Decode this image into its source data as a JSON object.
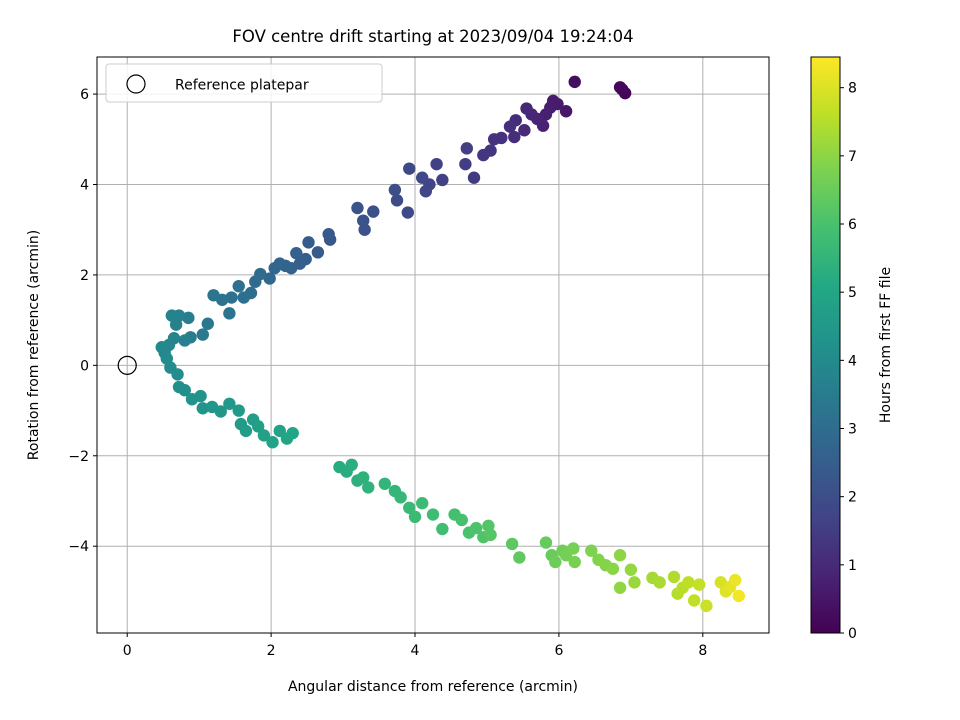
{
  "chart_data": {
    "type": "scatter",
    "title": "FOV centre drift starting at 2023/09/04 19:24:04",
    "xlabel": "Angular distance from reference (arcmin)",
    "ylabel": "Rotation from reference (arcmin)",
    "xlim": [
      -0.42,
      8.92
    ],
    "ylim": [
      -5.92,
      6.82
    ],
    "xticks": [
      0,
      2,
      4,
      6,
      8
    ],
    "yticks": [
      -4,
      -2,
      0,
      2,
      4,
      6
    ],
    "grid": true,
    "legend": {
      "placement": "upper-left",
      "entries": [
        "Reference platepar"
      ]
    },
    "reference_point": {
      "x": 0,
      "y": 0
    },
    "colorbar": {
      "label": "Hours from first FF file",
      "colormap": "viridis",
      "range": [
        0,
        8.45
      ],
      "ticks": [
        0,
        1,
        2,
        3,
        4,
        5,
        6,
        7,
        8
      ]
    },
    "point_color_encoding": "viridis by hours",
    "series": [
      {
        "points": [
          {
            "x": 6.92,
            "y": 6.02,
            "h": 0.1
          },
          {
            "x": 6.88,
            "y": 6.1,
            "h": 0.15
          },
          {
            "x": 6.85,
            "y": 6.15,
            "h": 0.2
          },
          {
            "x": 6.22,
            "y": 6.27,
            "h": 0.3
          },
          {
            "x": 6.1,
            "y": 5.62,
            "h": 0.55
          },
          {
            "x": 5.98,
            "y": 5.78,
            "h": 0.6
          },
          {
            "x": 5.92,
            "y": 5.85,
            "h": 0.65
          },
          {
            "x": 5.88,
            "y": 5.7,
            "h": 0.7
          },
          {
            "x": 5.82,
            "y": 5.55,
            "h": 0.75
          },
          {
            "x": 5.78,
            "y": 5.3,
            "h": 0.8
          },
          {
            "x": 5.7,
            "y": 5.45,
            "h": 0.85
          },
          {
            "x": 5.62,
            "y": 5.55,
            "h": 0.9
          },
          {
            "x": 5.55,
            "y": 5.68,
            "h": 0.95
          },
          {
            "x": 5.52,
            "y": 5.2,
            "h": 1.0
          },
          {
            "x": 5.4,
            "y": 5.42,
            "h": 1.05
          },
          {
            "x": 5.38,
            "y": 5.05,
            "h": 1.1
          },
          {
            "x": 5.32,
            "y": 5.28,
            "h": 1.15
          },
          {
            "x": 5.2,
            "y": 5.03,
            "h": 1.2
          },
          {
            "x": 5.1,
            "y": 5.0,
            "h": 1.25
          },
          {
            "x": 5.05,
            "y": 4.75,
            "h": 1.3
          },
          {
            "x": 4.95,
            "y": 4.65,
            "h": 1.35
          },
          {
            "x": 4.82,
            "y": 4.15,
            "h": 1.45
          },
          {
            "x": 4.7,
            "y": 4.45,
            "h": 1.5
          },
          {
            "x": 4.72,
            "y": 4.8,
            "h": 1.55
          },
          {
            "x": 4.38,
            "y": 4.1,
            "h": 1.6
          },
          {
            "x": 4.3,
            "y": 4.45,
            "h": 1.65
          },
          {
            "x": 4.2,
            "y": 4.0,
            "h": 1.7
          },
          {
            "x": 4.15,
            "y": 3.85,
            "h": 1.75
          },
          {
            "x": 4.1,
            "y": 4.15,
            "h": 1.8
          },
          {
            "x": 3.92,
            "y": 4.35,
            "h": 1.85
          },
          {
            "x": 3.9,
            "y": 3.38,
            "h": 1.9
          },
          {
            "x": 3.75,
            "y": 3.65,
            "h": 1.95
          },
          {
            "x": 3.72,
            "y": 3.88,
            "h": 2.0
          },
          {
            "x": 3.42,
            "y": 3.4,
            "h": 2.05
          },
          {
            "x": 3.3,
            "y": 3.0,
            "h": 2.1
          },
          {
            "x": 3.28,
            "y": 3.2,
            "h": 2.15
          },
          {
            "x": 3.2,
            "y": 3.48,
            "h": 2.2
          },
          {
            "x": 2.82,
            "y": 2.78,
            "h": 2.3
          },
          {
            "x": 2.8,
            "y": 2.9,
            "h": 2.35
          },
          {
            "x": 2.65,
            "y": 2.5,
            "h": 2.4
          },
          {
            "x": 2.52,
            "y": 2.72,
            "h": 2.45
          },
          {
            "x": 2.48,
            "y": 2.35,
            "h": 2.5
          },
          {
            "x": 2.4,
            "y": 2.25,
            "h": 2.55
          },
          {
            "x": 2.35,
            "y": 2.48,
            "h": 2.6
          },
          {
            "x": 2.28,
            "y": 2.15,
            "h": 2.65
          },
          {
            "x": 2.2,
            "y": 2.2,
            "h": 2.7
          },
          {
            "x": 2.12,
            "y": 2.25,
            "h": 2.75
          },
          {
            "x": 2.05,
            "y": 2.15,
            "h": 2.8
          },
          {
            "x": 1.98,
            "y": 1.92,
            "h": 2.85
          },
          {
            "x": 1.85,
            "y": 2.02,
            "h": 2.9
          },
          {
            "x": 1.78,
            "y": 1.85,
            "h": 2.95
          },
          {
            "x": 1.72,
            "y": 1.6,
            "h": 3.0
          },
          {
            "x": 1.62,
            "y": 1.5,
            "h": 3.05
          },
          {
            "x": 1.55,
            "y": 1.75,
            "h": 3.1
          },
          {
            "x": 1.45,
            "y": 1.5,
            "h": 3.15
          },
          {
            "x": 1.42,
            "y": 1.15,
            "h": 3.2
          },
          {
            "x": 1.32,
            "y": 1.45,
            "h": 3.25
          },
          {
            "x": 1.2,
            "y": 1.55,
            "h": 3.3
          },
          {
            "x": 1.12,
            "y": 0.92,
            "h": 3.35
          },
          {
            "x": 1.05,
            "y": 0.68,
            "h": 3.4
          },
          {
            "x": 0.88,
            "y": 0.62,
            "h": 3.5
          },
          {
            "x": 0.85,
            "y": 1.05,
            "h": 3.55
          },
          {
            "x": 0.8,
            "y": 0.55,
            "h": 3.6
          },
          {
            "x": 0.72,
            "y": 1.1,
            "h": 3.65
          },
          {
            "x": 0.68,
            "y": 0.9,
            "h": 3.7
          },
          {
            "x": 0.62,
            "y": 1.1,
            "h": 3.75
          },
          {
            "x": 0.65,
            "y": 0.6,
            "h": 3.8
          },
          {
            "x": 0.58,
            "y": 0.45,
            "h": 3.85
          },
          {
            "x": 0.52,
            "y": 0.28,
            "h": 3.9
          },
          {
            "x": 0.48,
            "y": 0.4,
            "h": 3.95
          },
          {
            "x": 0.55,
            "y": 0.15,
            "h": 4.0
          },
          {
            "x": 0.6,
            "y": -0.05,
            "h": 4.05
          },
          {
            "x": 0.7,
            "y": -0.2,
            "h": 4.1
          },
          {
            "x": 0.72,
            "y": -0.48,
            "h": 4.15
          },
          {
            "x": 0.8,
            "y": -0.55,
            "h": 4.2
          },
          {
            "x": 0.9,
            "y": -0.75,
            "h": 4.25
          },
          {
            "x": 1.02,
            "y": -0.68,
            "h": 4.3
          },
          {
            "x": 1.05,
            "y": -0.95,
            "h": 4.35
          },
          {
            "x": 1.18,
            "y": -0.92,
            "h": 4.4
          },
          {
            "x": 1.3,
            "y": -1.02,
            "h": 4.45
          },
          {
            "x": 1.42,
            "y": -0.85,
            "h": 4.5
          },
          {
            "x": 1.55,
            "y": -1.0,
            "h": 4.55
          },
          {
            "x": 1.58,
            "y": -1.3,
            "h": 4.6
          },
          {
            "x": 1.65,
            "y": -1.45,
            "h": 4.65
          },
          {
            "x": 1.75,
            "y": -1.2,
            "h": 4.7
          },
          {
            "x": 1.82,
            "y": -1.35,
            "h": 4.75
          },
          {
            "x": 1.9,
            "y": -1.55,
            "h": 4.8
          },
          {
            "x": 2.02,
            "y": -1.7,
            "h": 4.85
          },
          {
            "x": 2.12,
            "y": -1.45,
            "h": 4.9
          },
          {
            "x": 2.22,
            "y": -1.62,
            "h": 4.95
          },
          {
            "x": 2.3,
            "y": -1.5,
            "h": 5.0
          },
          {
            "x": 2.95,
            "y": -2.25,
            "h": 5.2
          },
          {
            "x": 3.05,
            "y": -2.35,
            "h": 5.25
          },
          {
            "x": 3.12,
            "y": -2.2,
            "h": 5.3
          },
          {
            "x": 3.2,
            "y": -2.55,
            "h": 5.35
          },
          {
            "x": 3.28,
            "y": -2.48,
            "h": 5.4
          },
          {
            "x": 3.35,
            "y": -2.7,
            "h": 5.45
          },
          {
            "x": 3.58,
            "y": -2.62,
            "h": 5.5
          },
          {
            "x": 3.72,
            "y": -2.78,
            "h": 5.55
          },
          {
            "x": 3.8,
            "y": -2.92,
            "h": 5.6
          },
          {
            "x": 3.92,
            "y": -3.15,
            "h": 5.65
          },
          {
            "x": 4.0,
            "y": -3.35,
            "h": 5.7
          },
          {
            "x": 4.1,
            "y": -3.05,
            "h": 5.75
          },
          {
            "x": 4.25,
            "y": -3.3,
            "h": 5.8
          },
          {
            "x": 4.38,
            "y": -3.62,
            "h": 5.85
          },
          {
            "x": 4.55,
            "y": -3.3,
            "h": 5.9
          },
          {
            "x": 4.65,
            "y": -3.42,
            "h": 5.95
          },
          {
            "x": 4.75,
            "y": -3.7,
            "h": 6.0
          },
          {
            "x": 4.85,
            "y": -3.6,
            "h": 6.05
          },
          {
            "x": 4.95,
            "y": -3.8,
            "h": 6.1
          },
          {
            "x": 5.02,
            "y": -3.55,
            "h": 6.15
          },
          {
            "x": 5.05,
            "y": -3.75,
            "h": 6.2
          },
          {
            "x": 5.35,
            "y": -3.95,
            "h": 6.3
          },
          {
            "x": 5.45,
            "y": -4.25,
            "h": 6.35
          },
          {
            "x": 5.82,
            "y": -3.92,
            "h": 6.45
          },
          {
            "x": 5.9,
            "y": -4.2,
            "h": 6.5
          },
          {
            "x": 5.95,
            "y": -4.35,
            "h": 6.55
          },
          {
            "x": 6.05,
            "y": -4.1,
            "h": 6.6
          },
          {
            "x": 6.1,
            "y": -4.2,
            "h": 6.65
          },
          {
            "x": 6.2,
            "y": -4.05,
            "h": 6.7
          },
          {
            "x": 6.22,
            "y": -4.35,
            "h": 6.72
          },
          {
            "x": 6.45,
            "y": -4.1,
            "h": 6.8
          },
          {
            "x": 6.55,
            "y": -4.3,
            "h": 6.85
          },
          {
            "x": 6.65,
            "y": -4.42,
            "h": 6.9
          },
          {
            "x": 6.75,
            "y": -4.5,
            "h": 6.95
          },
          {
            "x": 6.85,
            "y": -4.2,
            "h": 7.0
          },
          {
            "x": 6.85,
            "y": -4.92,
            "h": 7.05
          },
          {
            "x": 7.0,
            "y": -4.52,
            "h": 7.1
          },
          {
            "x": 7.05,
            "y": -4.8,
            "h": 7.15
          },
          {
            "x": 7.3,
            "y": -4.7,
            "h": 7.3
          },
          {
            "x": 7.4,
            "y": -4.8,
            "h": 7.35
          },
          {
            "x": 7.6,
            "y": -4.68,
            "h": 7.45
          },
          {
            "x": 7.65,
            "y": -5.05,
            "h": 7.5
          },
          {
            "x": 7.72,
            "y": -4.92,
            "h": 7.55
          },
          {
            "x": 7.8,
            "y": -4.8,
            "h": 7.6
          },
          {
            "x": 7.88,
            "y": -5.2,
            "h": 7.65
          },
          {
            "x": 7.95,
            "y": -4.85,
            "h": 7.7
          },
          {
            "x": 8.05,
            "y": -5.32,
            "h": 7.8
          },
          {
            "x": 8.25,
            "y": -4.8,
            "h": 7.95
          },
          {
            "x": 8.32,
            "y": -5.0,
            "h": 8.05
          },
          {
            "x": 8.38,
            "y": -4.9,
            "h": 8.1
          },
          {
            "x": 8.45,
            "y": -4.75,
            "h": 8.2
          },
          {
            "x": 8.5,
            "y": -5.1,
            "h": 8.3
          }
        ]
      }
    ]
  }
}
